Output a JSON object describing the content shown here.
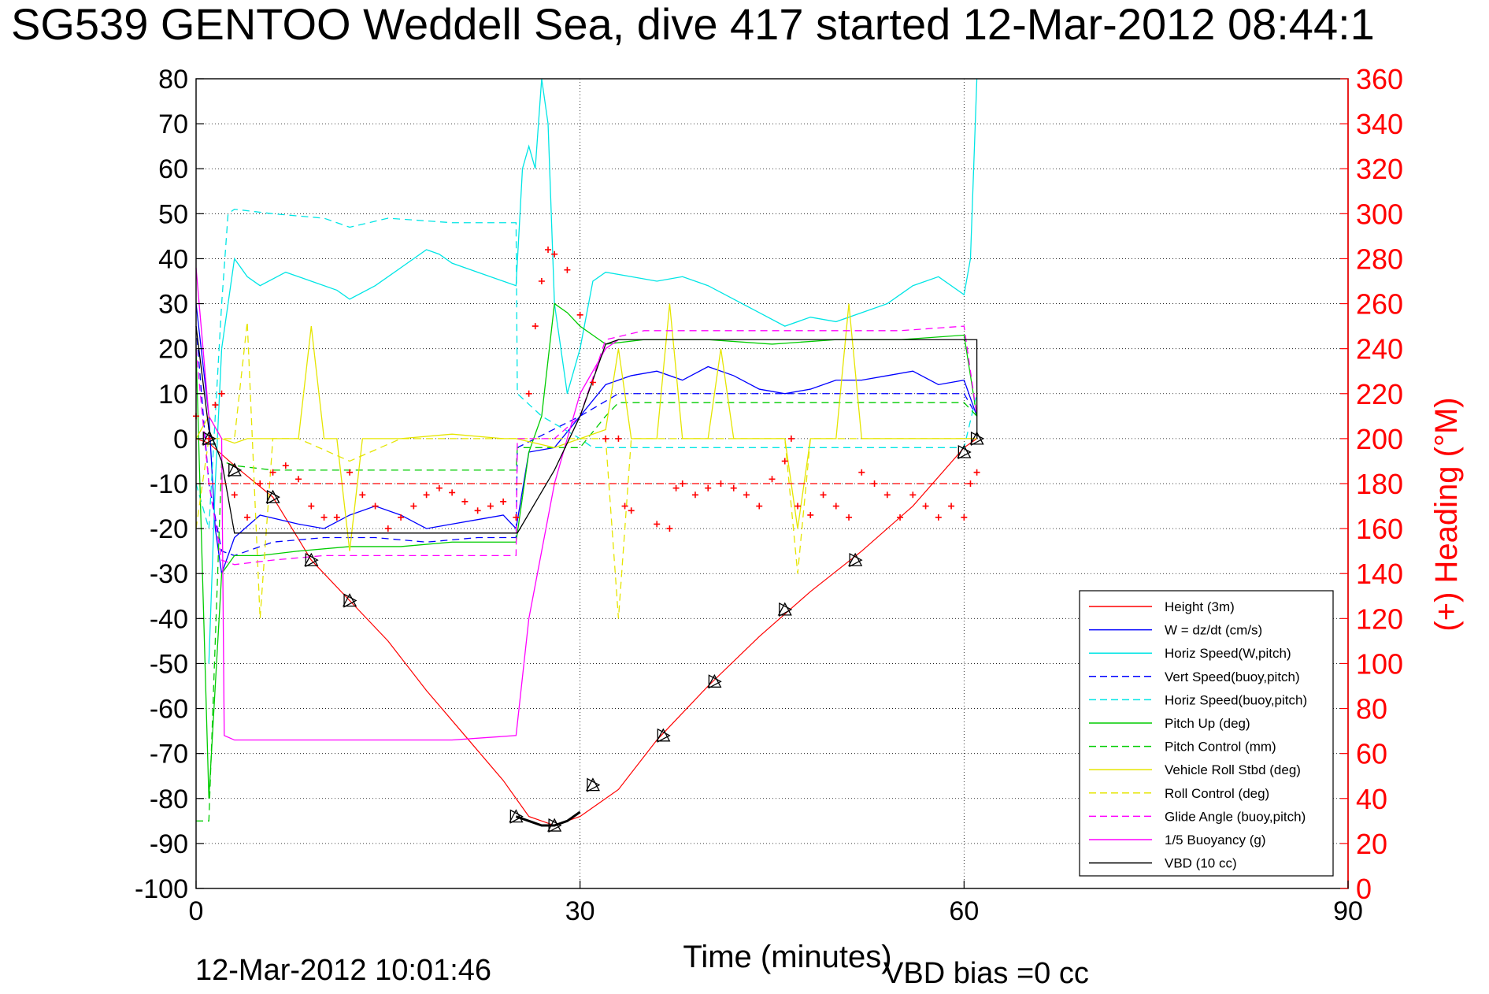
{
  "title": "SG539 GENTOO Weddell Sea, dive 417 started 12-Mar-2012 08:44:1",
  "footer": {
    "timestamp": "12-Mar-2012 10:01:46",
    "vbd_bias": "VBD bias =0 cc"
  },
  "chart_data": {
    "type": "line",
    "title": "SG539 GENTOO Weddell Sea, dive 417 started 12-Mar-2012 08:44:1",
    "xlabel": "Time (minutes)",
    "ylabel": "",
    "ylabel_right": "(+) Heading (°M)",
    "xlim": [
      0,
      90
    ],
    "ylim": [
      -100,
      80
    ],
    "ylim_right": [
      0,
      360
    ],
    "x_ticks": [
      0,
      30,
      60,
      90
    ],
    "y_ticks": [
      80,
      70,
      60,
      50,
      40,
      30,
      20,
      10,
      0,
      -10,
      -20,
      -30,
      -40,
      -50,
      -60,
      -70,
      -80,
      -90,
      -100
    ],
    "y_ticks_right": [
      360,
      340,
      320,
      300,
      280,
      260,
      240,
      220,
      200,
      180,
      160,
      140,
      120,
      100,
      80,
      60,
      40,
      20,
      0
    ],
    "grid": true,
    "legend_position": "bottom-right",
    "legend": [
      {
        "label": "Height (3m)",
        "color": "#ff0000",
        "dash": "solid"
      },
      {
        "label": "W = dz/dt (cm/s)",
        "color": "#0000ff",
        "dash": "solid"
      },
      {
        "label": "Horiz Speed(W,pitch)",
        "color": "#00e5e5",
        "dash": "solid"
      },
      {
        "label": "Vert Speed(buoy,pitch)",
        "color": "#0000ff",
        "dash": "dashed"
      },
      {
        "label": "Horiz Speed(buoy,pitch)",
        "color": "#00e5e5",
        "dash": "dashed"
      },
      {
        "label": "Pitch Up (deg)",
        "color": "#00cc00",
        "dash": "solid"
      },
      {
        "label": "Pitch Control (mm)",
        "color": "#00cc00",
        "dash": "dashed"
      },
      {
        "label": "Vehicle Roll Stbd (deg)",
        "color": "#e5e500",
        "dash": "solid"
      },
      {
        "label": "Roll Control (deg)",
        "color": "#e5e500",
        "dash": "dashed"
      },
      {
        "label": "Glide Angle (buoy,pitch)",
        "color": "#ff00ff",
        "dash": "dashed"
      },
      {
        "label": "1/5 Buoyancy (g)",
        "color": "#ff00ff",
        "dash": "solid"
      },
      {
        "label": "VBD (10 cc)",
        "color": "#000000",
        "dash": "solid"
      }
    ],
    "series": [
      {
        "name": "Height (3m)",
        "color": "#ff0000",
        "dash": "solid",
        "x": [
          0,
          1,
          3,
          6,
          9,
          12,
          15,
          18,
          21,
          24,
          26,
          28,
          30,
          33,
          36,
          40,
          44,
          48,
          52,
          56,
          60,
          61
        ],
        "y": [
          0,
          -1,
          -6,
          -13,
          -27,
          -36,
          -45,
          -56,
          -66,
          -76,
          -84,
          -86,
          -84,
          -78,
          -67,
          -55,
          -44,
          -34,
          -25,
          -15,
          -2,
          0
        ]
      },
      {
        "name": "W = dz/dt (cm/s)",
        "color": "#0000ff",
        "dash": "solid",
        "x": [
          0,
          1,
          1.5,
          2,
          3,
          5,
          8,
          10,
          12,
          14,
          16,
          18,
          20,
          22,
          24,
          25,
          26,
          28,
          30,
          32,
          34,
          36,
          38,
          40,
          42,
          44,
          46,
          48,
          50,
          52,
          54,
          56,
          58,
          60,
          61
        ],
        "y": [
          30,
          5,
          -20,
          -30,
          -22,
          -17,
          -19,
          -20,
          -17,
          -15,
          -17,
          -20,
          -19,
          -18,
          -17,
          -20,
          -3,
          -2,
          5,
          12,
          14,
          15,
          13,
          16,
          14,
          11,
          10,
          11,
          13,
          13,
          14,
          15,
          12,
          13,
          5
        ]
      },
      {
        "name": "Horiz Speed(W,pitch)",
        "color": "#00e5e5",
        "dash": "solid",
        "x": [
          1,
          1.5,
          2,
          3,
          4,
          5,
          7,
          9,
          11,
          12,
          14,
          16,
          18,
          19,
          20,
          22,
          24,
          25,
          25.5,
          26,
          26.5,
          27,
          27.5,
          28,
          29,
          30,
          31,
          32,
          34,
          36,
          38,
          40,
          42,
          44,
          46,
          48,
          50,
          52,
          54,
          56,
          58,
          60,
          60.5,
          61
        ],
        "y": [
          -50,
          -10,
          20,
          40,
          36,
          34,
          37,
          35,
          33,
          31,
          34,
          38,
          42,
          41,
          39,
          37,
          35,
          34,
          60,
          65,
          60,
          80,
          70,
          30,
          10,
          20,
          35,
          37,
          36,
          35,
          36,
          34,
          31,
          28,
          25,
          27,
          26,
          28,
          30,
          34,
          36,
          32,
          40,
          80
        ]
      },
      {
        "name": "Vert Speed(buoy,pitch)",
        "color": "#0000ff",
        "dash": "dashed",
        "x": [
          0,
          1,
          2,
          3,
          6,
          10,
          14,
          18,
          22,
          25,
          25.1,
          30,
          33,
          40,
          45,
          50,
          55,
          60,
          61
        ],
        "y": [
          25,
          -10,
          -25,
          -26,
          -23,
          -22,
          -22,
          -23,
          -22,
          -22,
          -2,
          5,
          10,
          10,
          10,
          10,
          10,
          10,
          5
        ]
      },
      {
        "name": "Horiz Speed(buoy,pitch)",
        "color": "#00e5e5",
        "dash": "dashed",
        "x": [
          0,
          1,
          2,
          2.5,
          3,
          6,
          10,
          12,
          15,
          20,
          25,
          25.1,
          27,
          30,
          31,
          32,
          40,
          45,
          50,
          55,
          60,
          61
        ],
        "y": [
          -10,
          -20,
          30,
          50,
          51,
          50,
          49,
          47,
          49,
          48,
          48,
          10,
          5,
          0,
          -2,
          -2,
          -2,
          -2,
          -2,
          -2,
          -2,
          10
        ]
      },
      {
        "name": "Pitch Up (deg)",
        "color": "#00cc00",
        "dash": "solid",
        "x": [
          0,
          1,
          2,
          3,
          5,
          8,
          12,
          16,
          20,
          24,
          25,
          26,
          27,
          28,
          29,
          30,
          32,
          35,
          40,
          45,
          50,
          55,
          60,
          61
        ],
        "y": [
          20,
          -80,
          -30,
          -26,
          -26,
          -25,
          -24,
          -24,
          -23,
          -23,
          -23,
          -3,
          5,
          30,
          28,
          25,
          21,
          22,
          22,
          21,
          22,
          22,
          23,
          5
        ]
      },
      {
        "name": "Pitch Control (mm)",
        "color": "#00cc00",
        "dash": "dashed",
        "x": [
          0,
          1,
          2,
          3,
          6,
          10,
          14,
          18,
          22,
          25,
          25.1,
          27,
          30,
          32,
          33,
          40,
          45,
          50,
          55,
          60,
          61
        ],
        "y": [
          -85,
          -85,
          -5,
          -6,
          -7,
          -7,
          -7,
          -7,
          -7,
          -7,
          -2,
          -2,
          -2,
          5,
          8,
          8,
          8,
          8,
          8,
          8,
          5
        ]
      },
      {
        "name": "Vehicle Roll Stbd (deg)",
        "color": "#e5e500",
        "dash": "solid",
        "x": [
          0,
          1,
          2,
          3,
          4,
          5,
          6,
          8,
          9,
          10,
          11,
          12,
          13,
          16,
          20,
          24,
          25,
          28,
          30,
          32,
          33,
          34,
          36,
          37,
          38,
          40,
          41,
          42,
          44,
          46,
          47,
          48,
          50,
          51,
          52,
          54,
          56,
          58,
          60,
          61
        ],
        "y": [
          0,
          5,
          0,
          -1,
          0,
          0,
          0,
          0,
          25,
          0,
          0,
          -25,
          0,
          0,
          1,
          0,
          0,
          -2,
          0,
          2,
          20,
          0,
          0,
          30,
          0,
          0,
          20,
          0,
          0,
          0,
          -20,
          0,
          0,
          30,
          0,
          0,
          0,
          0,
          0,
          0
        ]
      },
      {
        "name": "Roll Control (deg)",
        "color": "#e5e500",
        "dash": "dashed",
        "x": [
          0,
          1,
          2,
          3,
          4,
          5,
          6,
          8,
          12,
          16,
          20,
          24,
          25,
          30,
          32,
          33,
          34,
          36,
          40,
          46,
          47,
          48,
          52,
          56,
          60,
          61
        ],
        "y": [
          -20,
          0,
          0,
          0,
          26,
          -40,
          0,
          0,
          -5,
          0,
          0,
          0,
          0,
          0,
          0,
          -40,
          0,
          0,
          0,
          0,
          -30,
          0,
          0,
          0,
          0,
          0
        ]
      },
      {
        "name": "Glide Angle (buoy,pitch)",
        "color": "#ff00ff",
        "dash": "dashed",
        "x": [
          0,
          1,
          2,
          3,
          6,
          10,
          14,
          18,
          22,
          25,
          25.1,
          28,
          30,
          32,
          35,
          40,
          45,
          50,
          55,
          60,
          61
        ],
        "y": [
          20,
          -10,
          -27,
          -28,
          -27,
          -26,
          -26,
          -26,
          -26,
          -26,
          0,
          0,
          5,
          22,
          24,
          24,
          24,
          24,
          24,
          25,
          5
        ]
      },
      {
        "name": "1/5 Buoyancy (g)",
        "color": "#ff00ff",
        "dash": "solid",
        "x": [
          0,
          1,
          2,
          2.2,
          3,
          10,
          20,
          25,
          26,
          28,
          30,
          32,
          33
        ],
        "y": [
          38,
          5,
          0,
          -66,
          -67,
          -67,
          -67,
          -66,
          -40,
          -10,
          10,
          20,
          22
        ]
      },
      {
        "name": "VBD (10 cc)",
        "color": "#000000",
        "dash": "solid",
        "x": [
          0,
          1,
          2,
          3,
          10,
          20,
          25,
          25.1,
          28,
          30,
          32,
          33,
          40,
          50,
          60,
          61,
          61.01
        ],
        "y": [
          25,
          2,
          -5,
          -21,
          -21,
          -21,
          -21,
          -21,
          -7,
          5,
          21,
          22,
          22,
          22,
          22,
          22,
          0
        ]
      },
      {
        "name": "Heading",
        "color": "#ff0000",
        "dash": "marker-plus",
        "axis": "right",
        "x": [
          0,
          1,
          1.5,
          2,
          3,
          4,
          5,
          6,
          7,
          8,
          9,
          10,
          11,
          12,
          13,
          14,
          15,
          16,
          17,
          18,
          19,
          20,
          21,
          22,
          23,
          24,
          25,
          26,
          26.5,
          27,
          27.5,
          28,
          29,
          30,
          31,
          32,
          33,
          33.5,
          34,
          36,
          37,
          37.5,
          38,
          39,
          40,
          41,
          42,
          43,
          44,
          45,
          46,
          46.5,
          47,
          48,
          49,
          50,
          51,
          52,
          53,
          54,
          55,
          56,
          57,
          58,
          59,
          60,
          60.5,
          61
        ],
        "y": [
          210,
          200,
          215,
          220,
          175,
          165,
          180,
          185,
          188,
          182,
          170,
          165,
          165,
          185,
          175,
          170,
          160,
          165,
          170,
          175,
          178,
          176,
          172,
          168,
          170,
          172,
          165,
          220,
          250,
          270,
          284,
          282,
          275,
          255,
          225,
          200,
          200,
          170,
          168,
          162,
          160,
          178,
          180,
          175,
          178,
          180,
          178,
          175,
          170,
          182,
          190,
          200,
          170,
          166,
          175,
          170,
          165,
          185,
          180,
          175,
          165,
          175,
          170,
          165,
          170,
          165,
          180,
          185
        ]
      },
      {
        "name": "Heading target",
        "color": "#ff0000",
        "dash": "dashed",
        "axis": "right",
        "x": [
          0,
          61
        ],
        "y": [
          180,
          180
        ]
      }
    ],
    "markers": {
      "depth_markers": {
        "x": [
          1,
          3,
          6,
          9,
          12,
          25,
          28,
          31,
          36.5,
          40.5,
          46,
          51.5,
          60,
          61
        ],
        "y": [
          0,
          -7,
          -13,
          -27,
          -36,
          -84,
          -86,
          -77,
          -66,
          -54,
          -38,
          -27,
          -3,
          0
        ]
      },
      "bottom_segment": {
        "x": [
          25,
          26,
          27,
          28,
          29,
          30
        ],
        "y": [
          -84,
          -85,
          -86,
          -86,
          -85,
          -83
        ]
      }
    }
  }
}
